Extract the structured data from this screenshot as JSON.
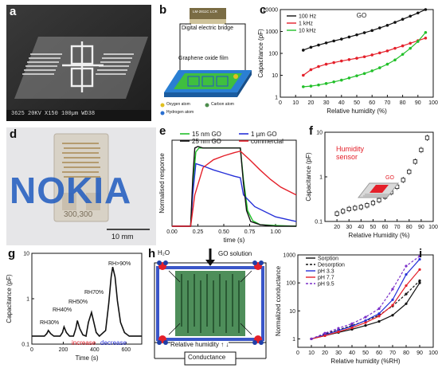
{
  "panels": {
    "a": {
      "label": "a",
      "sem_scalebar": "100µm",
      "sem_info": "3625  20KV  X150  100µm  WD38"
    },
    "b": {
      "label": "b",
      "instrument_tag": "LM-2811C LCR",
      "bridge_label": "Digital electric bridge",
      "film_label": "Graphene oxide film",
      "legend": [
        "Oxygen atom",
        "Carbon atom",
        "Hydrogen atom"
      ]
    },
    "c": {
      "label": "c"
    },
    "d": {
      "label": "d",
      "logo_text": "NOKIA",
      "chip_text": "300,300",
      "scalebar": "10 mm"
    },
    "e": {
      "label": "e"
    },
    "f": {
      "label": "f",
      "sensor_label": "Humidity sensor",
      "go_tag": "GO"
    },
    "g": {
      "label": "g",
      "increase": "increase",
      "decrease": "decrease",
      "rh_labels": [
        "RH30%",
        "RH40%",
        "RH50%",
        "RH70%",
        "RH>90%"
      ]
    },
    "h": {
      "label": "h",
      "h2o": "H₂O",
      "go_solution": "GO solution",
      "rh_text": "Relative humidity ↑ ↓",
      "conductance_box": "Conductance"
    },
    "i": {
      "label": "i"
    }
  },
  "colors": {
    "black": "#111111",
    "red": "#e4202a",
    "green": "#22c02a",
    "blue": "#2630d8",
    "purple": "#7b2fc9",
    "electrode": "#2f6e3a",
    "frame": "#3a56c8"
  },
  "chart_data": [
    {
      "id": "c",
      "type": "line",
      "title": "GO",
      "xlabel": "Relative humidity (%)",
      "ylabel": "Capacitance (pF)",
      "xlim": [
        0,
        100
      ],
      "ylim": [
        1,
        10000
      ],
      "yscale": "log",
      "xticks": [
        0,
        10,
        20,
        30,
        40,
        50,
        60,
        70,
        80,
        90,
        100
      ],
      "yticks": [
        1,
        10,
        100,
        1000,
        10000
      ],
      "ytick_labels": [
        "1",
        "10",
        "100",
        "1000",
        "10000"
      ],
      "legend_position": "top-left",
      "series": [
        {
          "name": "100 Hz",
          "color": "#111111",
          "x": [
            15,
            20,
            25,
            30,
            35,
            40,
            45,
            50,
            55,
            60,
            65,
            70,
            75,
            80,
            85,
            90,
            95
          ],
          "values": [
            140,
            190,
            240,
            300,
            370,
            450,
            560,
            700,
            880,
            1100,
            1450,
            1900,
            2600,
            3600,
            5000,
            7000,
            10000
          ]
        },
        {
          "name": "1 kHz",
          "color": "#e4202a",
          "x": [
            15,
            20,
            25,
            30,
            35,
            40,
            45,
            50,
            55,
            60,
            65,
            70,
            75,
            80,
            85,
            90,
            95
          ],
          "values": [
            10,
            18,
            25,
            32,
            38,
            45,
            52,
            60,
            70,
            85,
            105,
            130,
            170,
            220,
            290,
            380,
            500
          ]
        },
        {
          "name": "10 kHz",
          "color": "#22c02a",
          "x": [
            15,
            20,
            25,
            30,
            35,
            40,
            45,
            50,
            55,
            60,
            65,
            70,
            75,
            80,
            85,
            90,
            95
          ],
          "values": [
            3,
            3.2,
            3.6,
            4.2,
            5,
            6,
            7.5,
            9.5,
            12,
            16,
            22,
            32,
            50,
            90,
            170,
            350,
            900
          ]
        }
      ]
    },
    {
      "id": "e",
      "type": "line",
      "xlabel": "time (s)",
      "ylabel": "Normalised response",
      "xlim": [
        0,
        1.2
      ],
      "ylim": [
        0,
        1.1
      ],
      "xticks": [
        0,
        0.25,
        0.5,
        0.75,
        1.0
      ],
      "xtick_labels": [
        "0.00",
        "0.25",
        "0.50",
        "0.75",
        "1.00"
      ],
      "legend_position": "top",
      "series": [
        {
          "name": "15 nm GO",
          "color": "#22c02a",
          "x": [
            0,
            0.18,
            0.2,
            0.23,
            0.26,
            0.3,
            0.5,
            0.66,
            0.69,
            0.73,
            0.78,
            0.85,
            1.0,
            1.2
          ],
          "values": [
            0,
            0,
            0.5,
            0.95,
            1.0,
            1.0,
            1.0,
            1.0,
            0.6,
            0.2,
            0.07,
            0.02,
            0.01,
            0.0
          ]
        },
        {
          "name": "1 µm GO",
          "color": "#2630d8",
          "x": [
            0,
            0.18,
            0.2,
            0.23,
            0.3,
            0.4,
            0.5,
            0.6,
            0.66,
            0.69,
            0.8,
            1.0,
            1.2
          ],
          "values": [
            0,
            0,
            0.4,
            0.8,
            0.77,
            0.72,
            0.68,
            0.64,
            0.62,
            0.4,
            0.25,
            0.12,
            0.06
          ]
        },
        {
          "name": "25 nm GO",
          "color": "#111111",
          "x": [
            0,
            0.18,
            0.2,
            0.22,
            0.25,
            0.3,
            0.5,
            0.66,
            0.69,
            0.72,
            0.76,
            0.85,
            1.0,
            1.2
          ],
          "values": [
            0,
            0,
            0.6,
            1.0,
            1.02,
            1.0,
            1.0,
            1.0,
            0.55,
            0.2,
            0.06,
            0.02,
            0.0,
            0.0
          ]
        },
        {
          "name": "commercial",
          "color": "#e4202a",
          "x": [
            0,
            0.18,
            0.22,
            0.3,
            0.4,
            0.5,
            0.6,
            0.66,
            0.75,
            0.85,
            0.95,
            1.05,
            1.2
          ],
          "values": [
            0,
            0,
            0.4,
            0.75,
            0.85,
            0.9,
            0.94,
            0.96,
            0.85,
            0.72,
            0.6,
            0.5,
            0.4
          ]
        }
      ]
    },
    {
      "id": "f",
      "type": "scatter",
      "xlabel": "Relative Humidity  (%)",
      "ylabel": "Capacitance (pF)",
      "xlim": [
        10,
        100
      ],
      "ylim": [
        0.1,
        10
      ],
      "yscale": "log",
      "xticks": [
        20,
        30,
        40,
        50,
        60,
        70,
        80,
        90,
        100
      ],
      "yticks": [
        0.1,
        1,
        10
      ],
      "ytick_labels": [
        "0.1",
        "1",
        "10"
      ],
      "series": [
        {
          "name": "",
          "color": "#111111",
          "x": [
            20,
            25,
            30,
            35,
            40,
            45,
            50,
            55,
            60,
            65,
            70,
            75,
            80,
            85,
            90,
            95
          ],
          "values": [
            0.15,
            0.17,
            0.19,
            0.2,
            0.21,
            0.23,
            0.26,
            0.3,
            0.36,
            0.45,
            0.6,
            0.85,
            1.3,
            2.2,
            4,
            7.5
          ]
        }
      ]
    },
    {
      "id": "g",
      "type": "line",
      "xlabel": "Time (s)",
      "ylabel": "Capacitance (pF)",
      "xlim": [
        0,
        700
      ],
      "ylim": [
        0.1,
        10
      ],
      "yscale": "log",
      "xticks": [
        0,
        200,
        400,
        600
      ],
      "yticks": [
        0.1,
        1,
        10
      ],
      "ytick_labels": [
        "0.1",
        "1",
        "10"
      ],
      "series": [
        {
          "name": "",
          "color": "#111111",
          "x": [
            0,
            80,
            95,
            105,
            120,
            140,
            180,
            195,
            205,
            220,
            240,
            265,
            280,
            290,
            305,
            325,
            345,
            360,
            380,
            395,
            410,
            430,
            470,
            490,
            505,
            515,
            530,
            545,
            565,
            590,
            620,
            660,
            700
          ],
          "values": [
            0.15,
            0.15,
            0.17,
            0.2,
            0.17,
            0.15,
            0.15,
            0.18,
            0.24,
            0.18,
            0.15,
            0.15,
            0.22,
            0.33,
            0.22,
            0.16,
            0.15,
            0.3,
            0.5,
            0.3,
            0.18,
            0.15,
            0.2,
            0.8,
            3,
            5,
            3,
            0.9,
            0.3,
            0.18,
            0.15,
            0.15,
            0.15
          ]
        }
      ]
    },
    {
      "id": "i",
      "type": "line",
      "xlabel": "Relative humidity (%RH)",
      "ylabel": "Normalized conductance",
      "xlim": [
        0,
        100
      ],
      "ylim": [
        0.5,
        1000
      ],
      "yscale": "log",
      "xticks": [
        0,
        10,
        20,
        30,
        40,
        50,
        60,
        70,
        80,
        90,
        100
      ],
      "yticks": [
        1,
        10,
        100,
        1000
      ],
      "ytick_labels": [
        "1",
        "10",
        "100",
        "1000"
      ],
      "legend_position": "top-left",
      "series": [
        {
          "name": "Sorption",
          "color": "#111111",
          "style": "solid",
          "x": [
            10,
            20,
            30,
            40,
            50,
            60,
            70,
            80,
            90
          ],
          "values": [
            1,
            1.3,
            1.7,
            2.2,
            3,
            4.2,
            7,
            18,
            100
          ]
        },
        {
          "name": "Desorption",
          "color": "#111111",
          "style": "dashed",
          "x": [
            10,
            20,
            30,
            40,
            50,
            60,
            70,
            80,
            90
          ],
          "values": [
            1,
            1.5,
            2.1,
            3,
            4.4,
            7,
            15,
            40,
            120
          ]
        },
        {
          "name": "pH 3.3",
          "color": "#2630d8",
          "style": "solid",
          "x": [
            10,
            20,
            30,
            40,
            50,
            60,
            70,
            80,
            90
          ],
          "values": [
            1,
            1.4,
            2,
            2.8,
            4.5,
            8,
            25,
            200,
            700
          ]
        },
        {
          "name": "pH 7.7",
          "color": "#e4202a",
          "style": "solid",
          "x": [
            10,
            20,
            30,
            40,
            50,
            60,
            70,
            80,
            90
          ],
          "values": [
            1,
            1.3,
            1.8,
            2.5,
            3.8,
            6.5,
            16,
            80,
            300
          ]
        },
        {
          "name": "pH 9.5",
          "color": "#7b2fc9",
          "style": "dashed",
          "x": [
            10,
            20,
            30,
            40,
            50,
            60,
            70,
            80,
            90
          ],
          "values": [
            1,
            1.6,
            2.4,
            3.5,
            6,
            12,
            60,
            400,
            900
          ]
        }
      ]
    }
  ]
}
